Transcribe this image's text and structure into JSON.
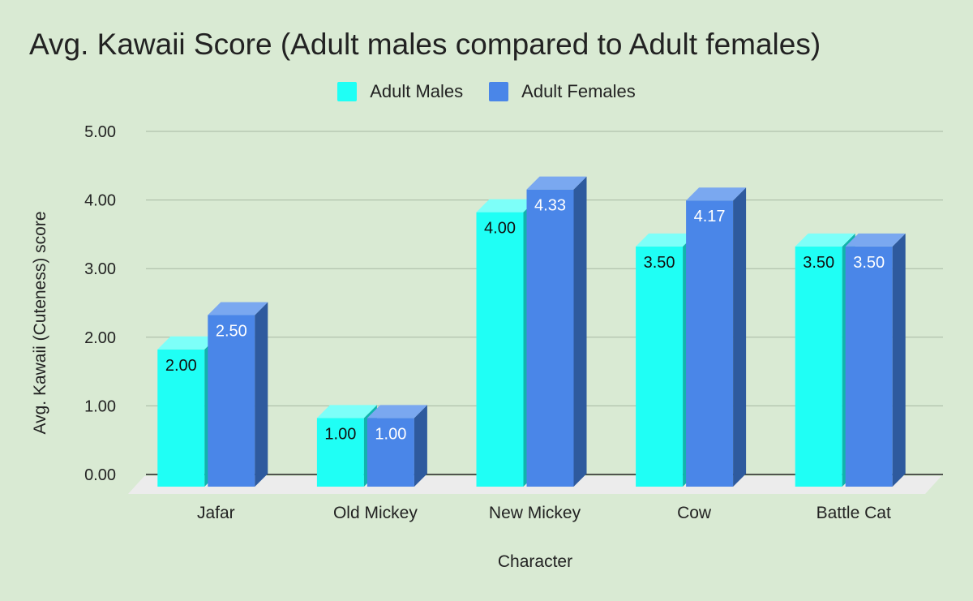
{
  "chart_data": {
    "type": "bar",
    "title": "Avg. Kawaii Score (Adult males compared to Adult females)",
    "xlabel": "Character",
    "ylabel": "Avg. Kawaii (Cuteness) score",
    "categories": [
      "Jafar",
      "Old Mickey",
      "New Mickey",
      "Cow",
      "Battle Cat"
    ],
    "series": [
      {
        "name": "Adult Males",
        "values": [
          2.0,
          1.0,
          4.0,
          3.5,
          3.5
        ],
        "labels": [
          "2.00",
          "1.00",
          "4.00",
          "3.50",
          "3.50"
        ],
        "color": "#1ffff5",
        "side_color": "#11b3ac",
        "top_color": "#7dfff9",
        "label_color": "#111111"
      },
      {
        "name": "Adult Females",
        "values": [
          2.5,
          1.0,
          4.33,
          4.17,
          3.5
        ],
        "labels": [
          "2.50",
          "1.00",
          "4.33",
          "4.17",
          "3.50"
        ],
        "color": "#4a86e8",
        "side_color": "#2e5a9e",
        "top_color": "#7aa8f0",
        "label_color": "#ffffff"
      }
    ],
    "ylim": [
      0,
      5
    ],
    "yticks": [
      "0.00",
      "1.00",
      "2.00",
      "3.00",
      "4.00",
      "5.00"
    ],
    "grid": true,
    "legend_position": "top",
    "style": "3d-bar",
    "colors": {
      "background": "#d9ead3",
      "gridline": "#a8b8a3",
      "floor": "#ececec",
      "text": "#222222"
    }
  }
}
